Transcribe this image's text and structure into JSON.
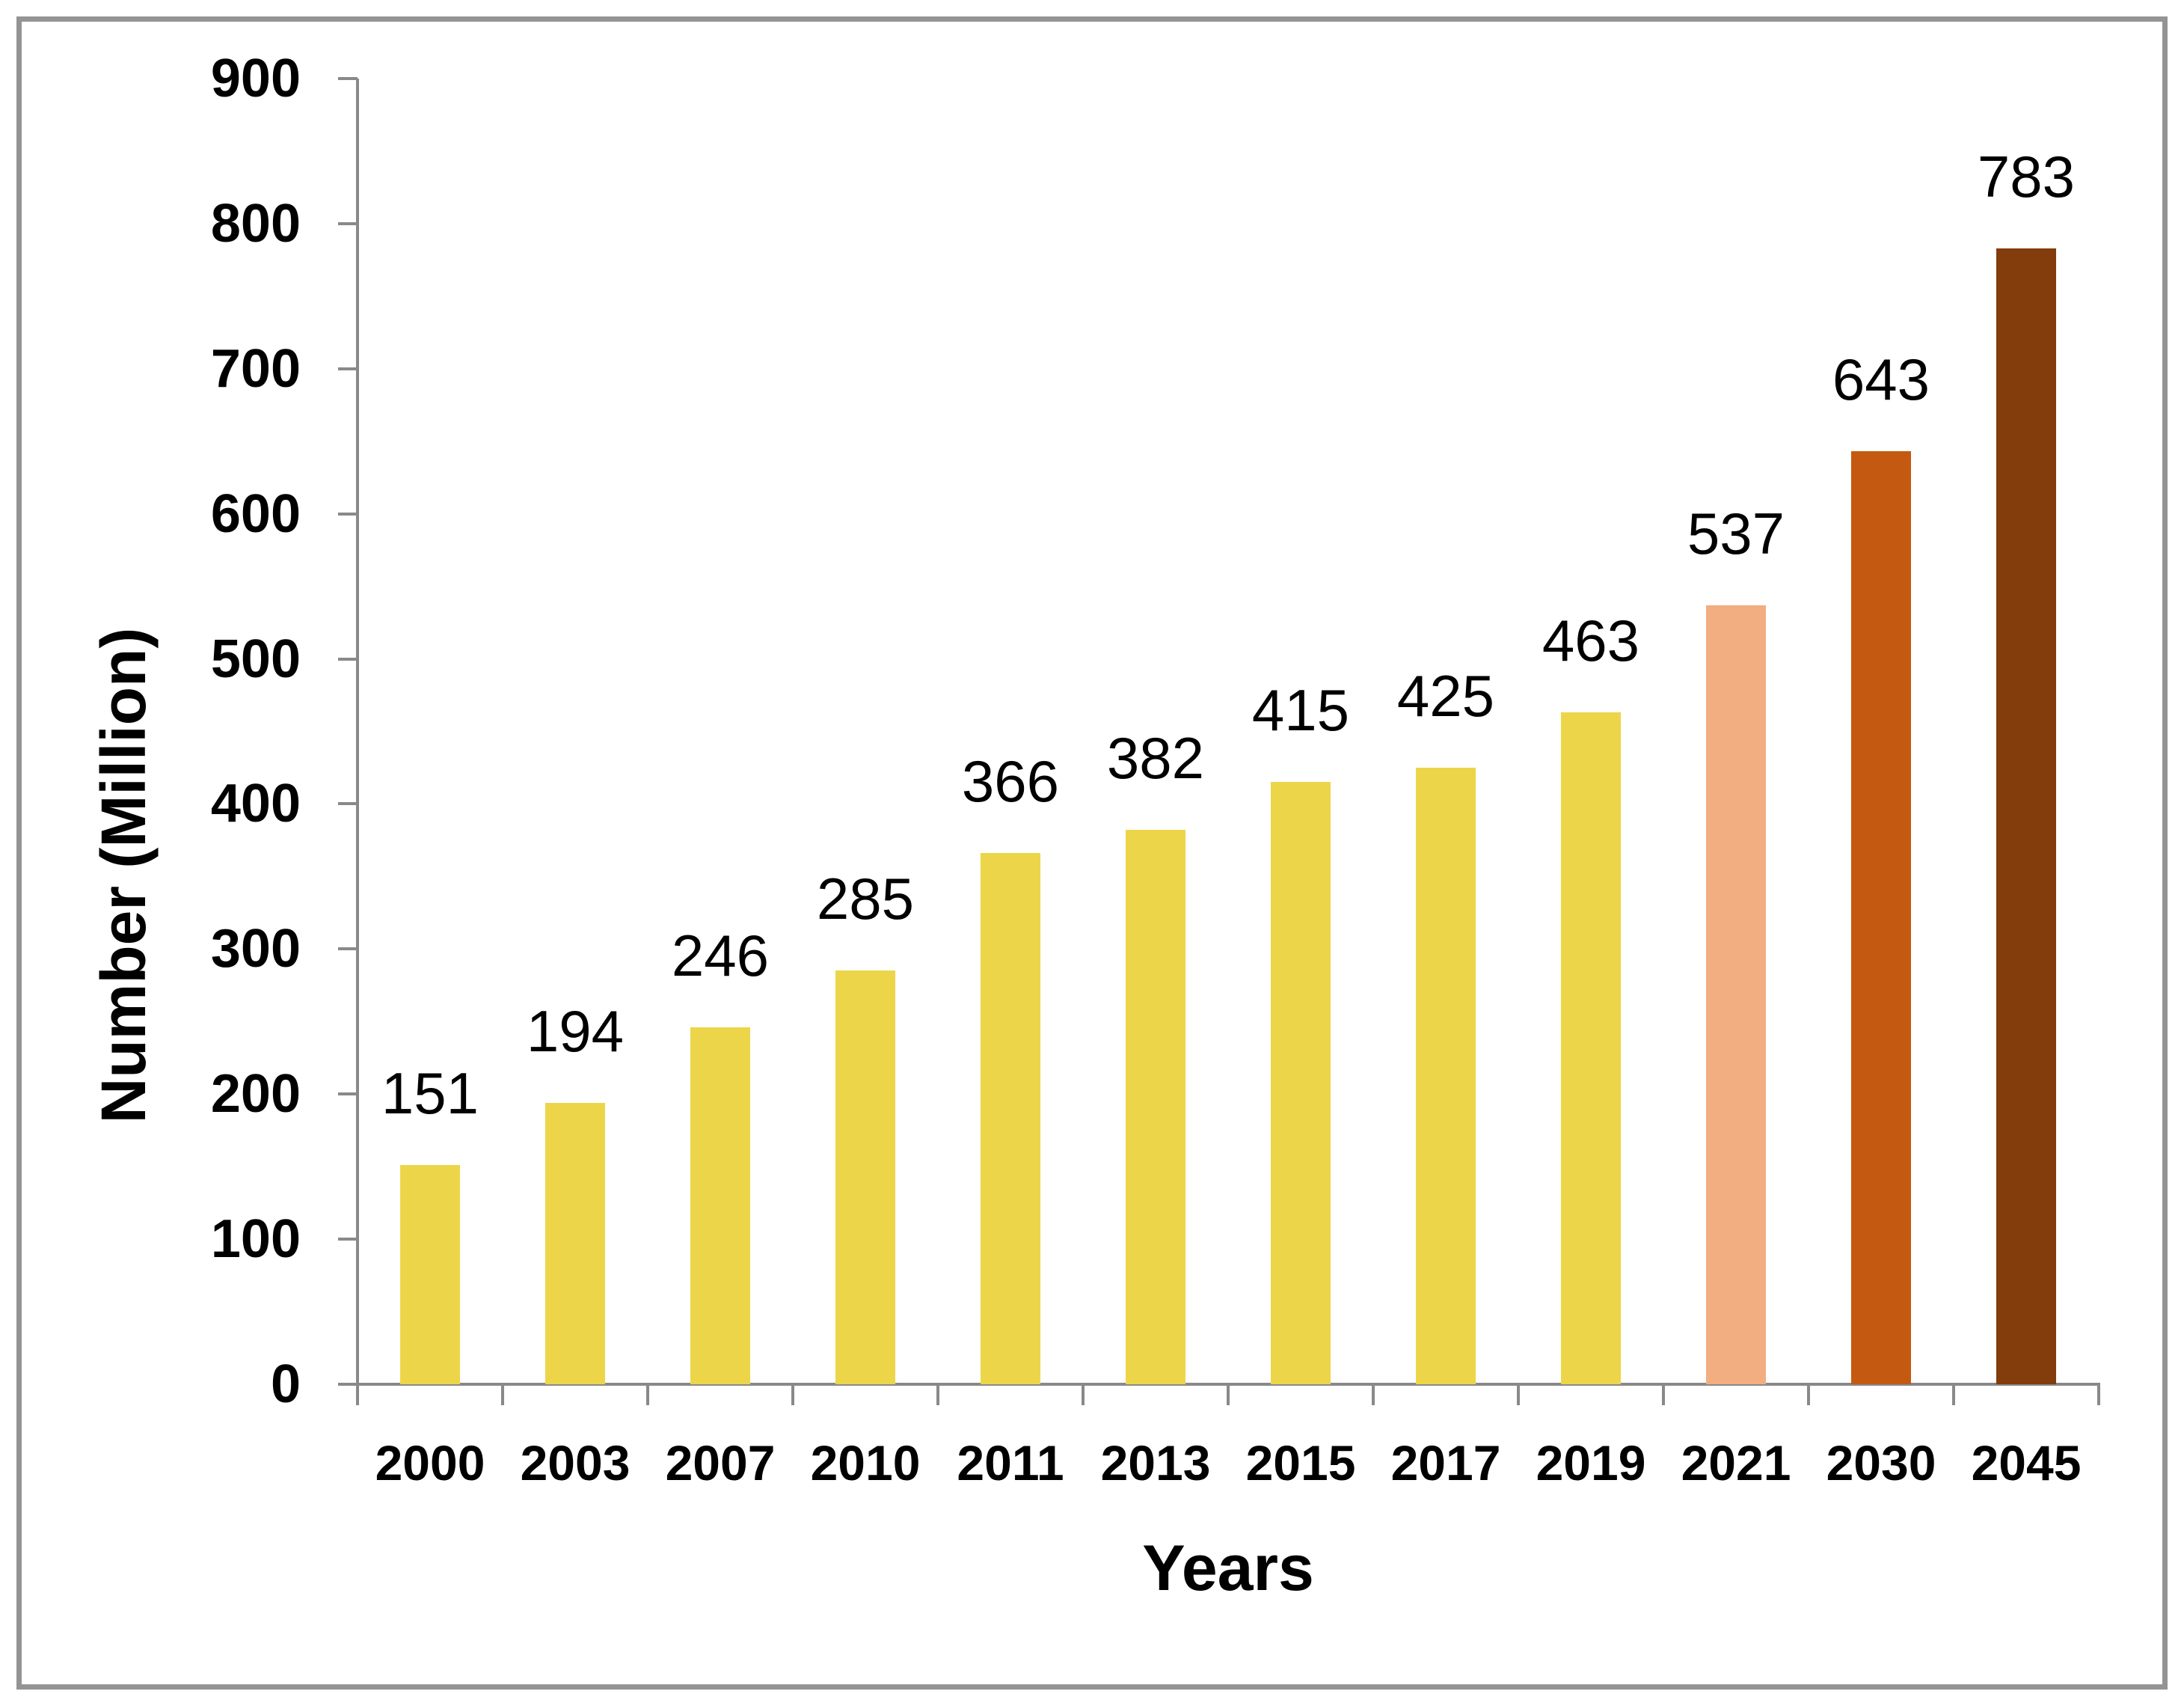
{
  "chart_data": {
    "type": "bar",
    "title": "",
    "xlabel": "Years",
    "ylabel": "Number (Million)",
    "categories": [
      "2000",
      "2003",
      "2007",
      "2010",
      "2011",
      "2013",
      "2015",
      "2017",
      "2019",
      "2021",
      "2030",
      "2045"
    ],
    "values": [
      151,
      194,
      246,
      285,
      366,
      382,
      415,
      425,
      463,
      537,
      643,
      783
    ],
    "bar_colors": [
      "#EDD54A",
      "#EDD54A",
      "#EDD54A",
      "#EDD54A",
      "#EDD54A",
      "#EDD54A",
      "#EDD54A",
      "#EDD54A",
      "#EDD54A",
      "#F2AE80",
      "#C45A11",
      "#833C0B"
    ],
    "yticks": [
      0,
      100,
      200,
      300,
      400,
      500,
      600,
      700,
      800,
      900
    ],
    "ylim": [
      0,
      900
    ],
    "grid": false,
    "legend": "none",
    "value_labels": "above-bars",
    "colors": {
      "axis": "#898989",
      "frame_border": "#949494",
      "text": "#000000",
      "background": "#ffffff"
    }
  }
}
